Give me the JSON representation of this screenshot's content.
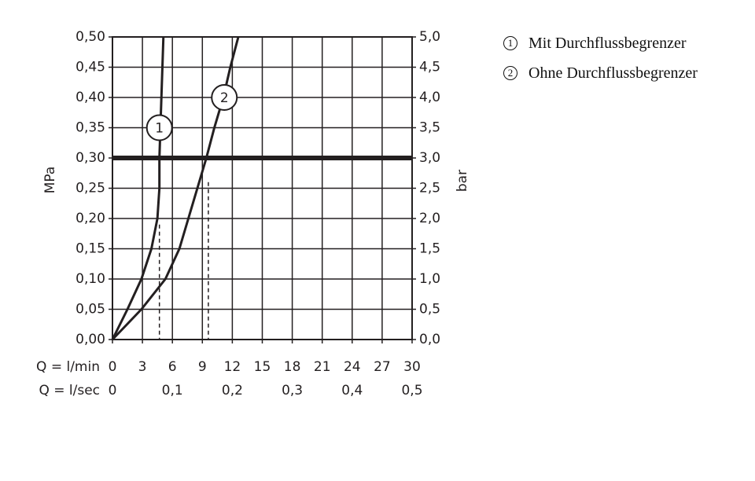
{
  "chart_data": {
    "type": "line",
    "x_label": "Q = l/min",
    "x2_label": "Q = l/sec",
    "y_label": "MPa",
    "y2_label": "bar",
    "xlim": [
      0,
      30
    ],
    "xticks": [
      0,
      3,
      6,
      9,
      12,
      15,
      18,
      21,
      24,
      27,
      30
    ],
    "x2lim": [
      0,
      0.5
    ],
    "x2ticks": [
      {
        "value": 0,
        "label": "0"
      },
      {
        "value": 0.1,
        "label": "0,1"
      },
      {
        "value": 0.2,
        "label": "0,2"
      },
      {
        "value": 0.3,
        "label": "0,3"
      },
      {
        "value": 0.4,
        "label": "0,4"
      },
      {
        "value": 0.5,
        "label": "0,5"
      }
    ],
    "ylim": [
      0,
      0.5
    ],
    "yticks": [
      {
        "value": 0,
        "label": "0,00"
      },
      {
        "value": 0.05,
        "label": "0,05"
      },
      {
        "value": 0.1,
        "label": "0,10"
      },
      {
        "value": 0.15,
        "label": "0,15"
      },
      {
        "value": 0.2,
        "label": "0,20"
      },
      {
        "value": 0.25,
        "label": "0,25"
      },
      {
        "value": 0.3,
        "label": "0,30"
      },
      {
        "value": 0.35,
        "label": "0,35"
      },
      {
        "value": 0.4,
        "label": "0,40"
      },
      {
        "value": 0.45,
        "label": "0,45"
      },
      {
        "value": 0.5,
        "label": "0,50"
      }
    ],
    "y2lim": [
      0,
      5
    ],
    "y2ticks": [
      {
        "value": 0,
        "label": "0,0"
      },
      {
        "value": 0.5,
        "label": "0,5"
      },
      {
        "value": 1,
        "label": "1,0"
      },
      {
        "value": 1.5,
        "label": "1,5"
      },
      {
        "value": 2,
        "label": "2,0"
      },
      {
        "value": 2.5,
        "label": "2,5"
      },
      {
        "value": 3,
        "label": "3,0"
      },
      {
        "value": 3.5,
        "label": "3,5"
      },
      {
        "value": 4,
        "label": "4,0"
      },
      {
        "value": 4.5,
        "label": "4,5"
      },
      {
        "value": 5,
        "label": "5,0"
      }
    ],
    "grid": true,
    "highlight_y": 0.3,
    "dashed": [
      {
        "x": 4.7,
        "y": 0.19
      },
      {
        "x": 9.6,
        "y": 0.26
      }
    ],
    "series": [
      {
        "name": "Mit Durchflussbegrenzer",
        "label": "1",
        "label_at": [
          4.7,
          0.35
        ],
        "color": "#231f20",
        "x": [
          0,
          1.5,
          2.9,
          3.9,
          4.5,
          4.7,
          4.7,
          4.8,
          4.9,
          5.0,
          5.1
        ],
        "values": [
          0,
          0.05,
          0.1,
          0.15,
          0.2,
          0.25,
          0.3,
          0.35,
          0.4,
          0.45,
          0.5
        ]
      },
      {
        "name": "Ohne Durchflussbegrenzer",
        "label": "2",
        "label_at": [
          11.2,
          0.4
        ],
        "color": "#231f20",
        "x": [
          0,
          2.9,
          5.3,
          6.7,
          7.6,
          8.5,
          9.4,
          10.2,
          11.1,
          11.8,
          12.6
        ],
        "values": [
          0,
          0.05,
          0.1,
          0.15,
          0.2,
          0.25,
          0.3,
          0.35,
          0.4,
          0.45,
          0.5
        ]
      }
    ]
  }
}
